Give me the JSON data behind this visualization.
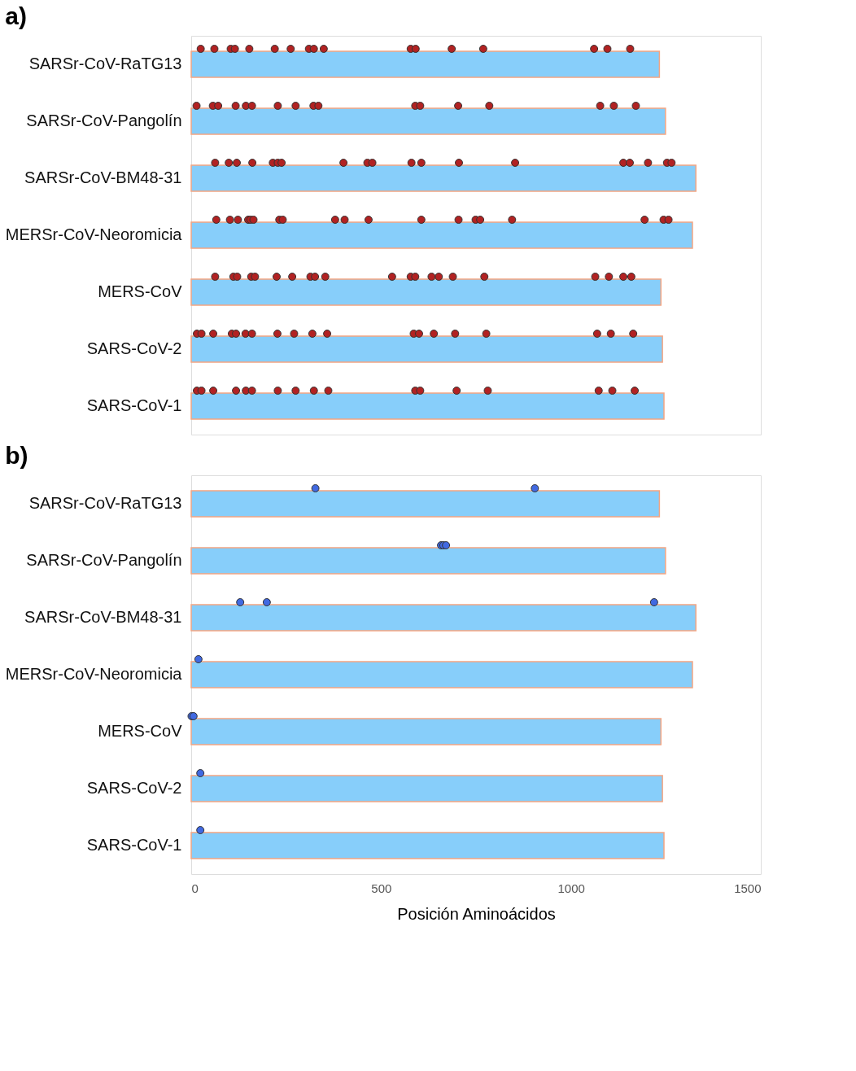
{
  "chart_data": [
    {
      "type": "bar",
      "orientation": "horizontal",
      "title": "a)",
      "tick_labels": "y",
      "grid": false,
      "xlim": [
        0,
        1500
      ],
      "xticks": [
        0,
        500,
        1000,
        1500
      ],
      "categories": [
        "SARSr-CoV-RaTG13",
        "SARSr-CoV-Pangolín",
        "SARSr-CoV-BM48-31",
        "MERSr-CoV-Neoromicia",
        "MERS-CoV",
        "SARS-CoV-2",
        "SARS-CoV-1"
      ],
      "series": [
        {
          "color": "#87cefa",
          "values": [
            1233,
            1249,
            1329,
            1320,
            1237,
            1241,
            1245
          ]
        },
        {
          "type": "scatter",
          "marker": "circle",
          "color": "#b22222",
          "x": [
            "SARSr-CoV-RaTG13",
            "SARSr-CoV-RaTG13",
            "SARSr-CoV-RaTG13",
            "SARSr-CoV-RaTG13",
            "SARSr-CoV-RaTG13",
            "SARSr-CoV-RaTG13",
            "SARSr-CoV-RaTG13",
            "SARSr-CoV-RaTG13",
            "SARSr-CoV-RaTG13",
            "SARSr-CoV-RaTG13",
            "SARSr-CoV-RaTG13",
            "SARSr-CoV-RaTG13",
            "SARSr-CoV-RaTG13",
            "SARSr-CoV-RaTG13",
            "SARSr-CoV-RaTG13",
            "SARSr-CoV-RaTG13",
            "SARSr-CoV-RaTG13",
            "SARSr-CoV-Pangolín",
            "SARSr-CoV-Pangolín",
            "SARSr-CoV-Pangolín",
            "SARSr-CoV-Pangolín",
            "SARSr-CoV-Pangolín",
            "SARSr-CoV-Pangolín",
            "SARSr-CoV-Pangolín",
            "SARSr-CoV-Pangolín",
            "SARSr-CoV-Pangolín",
            "SARSr-CoV-Pangolín",
            "SARSr-CoV-Pangolín",
            "SARSr-CoV-Pangolín",
            "SARSr-CoV-Pangolín",
            "SARSr-CoV-Pangolín",
            "SARSr-CoV-Pangolín",
            "SARSr-CoV-Pangolín",
            "SARSr-CoV-Pangolín",
            "SARSr-CoV-BM48-31",
            "SARSr-CoV-BM48-31",
            "SARSr-CoV-BM48-31",
            "SARSr-CoV-BM48-31",
            "SARSr-CoV-BM48-31",
            "SARSr-CoV-BM48-31",
            "SARSr-CoV-BM48-31",
            "SARSr-CoV-BM48-31",
            "SARSr-CoV-BM48-31",
            "SARSr-CoV-BM48-31",
            "SARSr-CoV-BM48-31",
            "SARSr-CoV-BM48-31",
            "SARSr-CoV-BM48-31",
            "SARSr-CoV-BM48-31",
            "SARSr-CoV-BM48-31",
            "SARSr-CoV-BM48-31",
            "SARSr-CoV-BM48-31",
            "SARSr-CoV-BM48-31",
            "SARSr-CoV-BM48-31",
            "MERSr-CoV-Neoromicia",
            "MERSr-CoV-Neoromicia",
            "MERSr-CoV-Neoromicia",
            "MERSr-CoV-Neoromicia",
            "MERSr-CoV-Neoromicia",
            "MERSr-CoV-Neoromicia",
            "MERSr-CoV-Neoromicia",
            "MERSr-CoV-Neoromicia",
            "MERSr-CoV-Neoromicia",
            "MERSr-CoV-Neoromicia",
            "MERSr-CoV-Neoromicia",
            "MERSr-CoV-Neoromicia",
            "MERSr-CoV-Neoromicia",
            "MERSr-CoV-Neoromicia",
            "MERSr-CoV-Neoromicia",
            "MERSr-CoV-Neoromicia",
            "MERSr-CoV-Neoromicia",
            "MERSr-CoV-Neoromicia",
            "MERSr-CoV-Neoromicia",
            "MERS-CoV",
            "MERS-CoV",
            "MERS-CoV",
            "MERS-CoV",
            "MERS-CoV",
            "MERS-CoV",
            "MERS-CoV",
            "MERS-CoV",
            "MERS-CoV",
            "MERS-CoV",
            "MERS-CoV",
            "MERS-CoV",
            "MERS-CoV",
            "MERS-CoV",
            "MERS-CoV",
            "MERS-CoV",
            "MERS-CoV",
            "MERS-CoV",
            "MERS-CoV",
            "MERS-CoV",
            "MERS-CoV",
            "SARS-CoV-2",
            "SARS-CoV-2",
            "SARS-CoV-2",
            "SARS-CoV-2",
            "SARS-CoV-2",
            "SARS-CoV-2",
            "SARS-CoV-2",
            "SARS-CoV-2",
            "SARS-CoV-2",
            "SARS-CoV-2",
            "SARS-CoV-2",
            "SARS-CoV-2",
            "SARS-CoV-2",
            "SARS-CoV-2",
            "SARS-CoV-2",
            "SARS-CoV-2",
            "SARS-CoV-2",
            "SARS-CoV-2",
            "SARS-CoV-2",
            "SARS-CoV-1",
            "SARS-CoV-1",
            "SARS-CoV-1",
            "SARS-CoV-1",
            "SARS-CoV-1",
            "SARS-CoV-1",
            "SARS-CoV-1",
            "SARS-CoV-1",
            "SARS-CoV-1",
            "SARS-CoV-1",
            "SARS-CoV-1",
            "SARS-CoV-1",
            "SARS-CoV-1",
            "SARS-CoV-1",
            "SARS-CoV-1",
            "SARS-CoV-1",
            "SARS-CoV-1"
          ],
          "values": [
            25,
            61,
            104,
            115,
            153,
            220,
            262,
            310,
            323,
            349,
            578,
            591,
            686,
            769,
            1061,
            1096,
            1156,
            14,
            57,
            71,
            117,
            144,
            160,
            228,
            275,
            322,
            335,
            590,
            603,
            703,
            785,
            1077,
            1113,
            1171,
            63,
            99,
            120,
            161,
            215,
            228,
            238,
            401,
            464,
            477,
            580,
            606,
            705,
            853,
            1138,
            1155,
            1203,
            1253,
            1265,
            66,
            102,
            123,
            150,
            156,
            164,
            232,
            241,
            379,
            404,
            467,
            606,
            704,
            749,
            761,
            845,
            1194,
            1244,
            1257,
            63,
            111,
            121,
            158,
            168,
            225,
            266,
            314,
            326,
            353,
            529,
            578,
            590,
            633,
            652,
            689,
            772,
            1064,
            1100,
            1138,
            1159,
            15,
            27,
            58,
            107,
            118,
            143,
            160,
            227,
            271,
            319,
            358,
            586,
            600,
            639,
            695,
            777,
            1069,
            1105,
            1164,
            15,
            27,
            58,
            118,
            144,
            160,
            228,
            275,
            323,
            361,
            590,
            603,
            699,
            781,
            1073,
            1109,
            1168
          ]
        }
      ]
    },
    {
      "type": "bar",
      "orientation": "horizontal",
      "title": "b)",
      "xlabel": "Posición Aminoácidos",
      "grid": false,
      "xlim": [
        0,
        1500
      ],
      "xticks": [
        0,
        500,
        1000,
        1500
      ],
      "categories": [
        "SARSr-CoV-RaTG13",
        "SARSr-CoV-Pangolín",
        "SARSr-CoV-BM48-31",
        "MERSr-CoV-Neoromicia",
        "MERS-CoV",
        "SARS-CoV-2",
        "SARS-CoV-1"
      ],
      "series": [
        {
          "color": "#87cefa",
          "values": [
            1233,
            1249,
            1329,
            1320,
            1237,
            1241,
            1245
          ]
        },
        {
          "type": "scatter",
          "marker": "circle",
          "color": "#4169e1",
          "x": [
            "SARSr-CoV-RaTG13",
            "SARSr-CoV-RaTG13",
            "SARSr-CoV-Pangolín",
            "SARSr-CoV-Pangolín",
            "SARSr-CoV-Pangolín",
            "SARSr-CoV-BM48-31",
            "SARSr-CoV-BM48-31",
            "SARSr-CoV-BM48-31",
            "MERSr-CoV-Neoromicia",
            "MERS-CoV",
            "MERS-CoV",
            "SARS-CoV-2",
            "SARS-CoV-1"
          ],
          "values": [
            327,
            905,
            658,
            664,
            671,
            129,
            199,
            1219,
            19,
            1,
            6,
            24,
            24
          ]
        }
      ]
    }
  ]
}
